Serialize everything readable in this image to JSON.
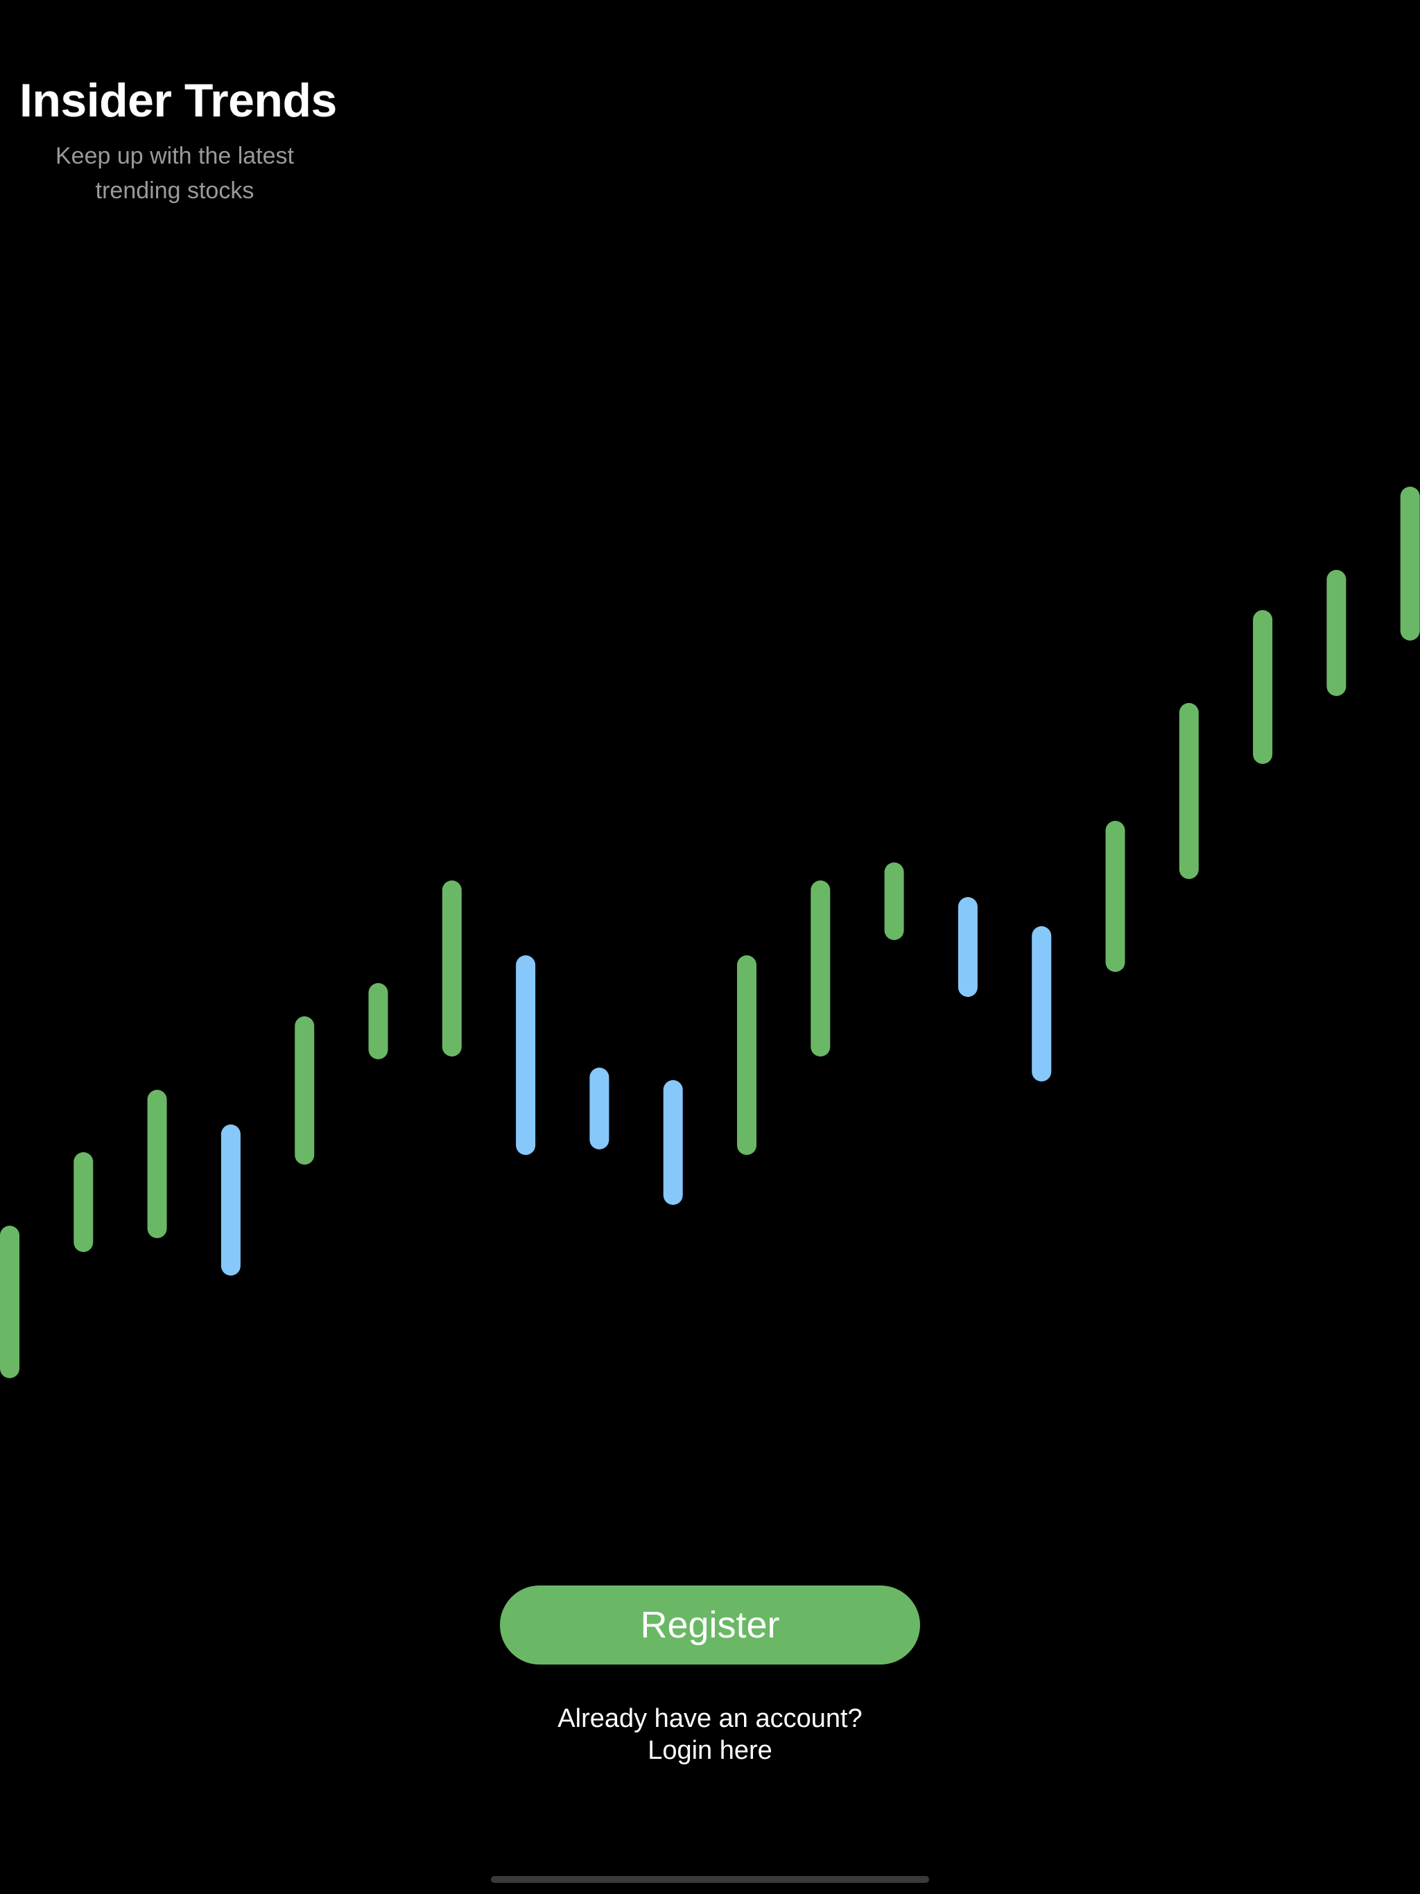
{
  "header": {
    "title": "Insider Trends",
    "subtitle": "Keep up with the latest trending stocks"
  },
  "actions": {
    "register_label": "Register",
    "login_prompt": "Already have an account?",
    "login_label": "Login here"
  },
  "colors": {
    "background": "#000000",
    "up": "#6ab865",
    "down": "#87c8fa",
    "home_indicator": "#3a3a3c"
  },
  "chart_data": {
    "type": "bar",
    "decorative": true,
    "bars": [
      {
        "low": 0.0,
        "high": 11.0,
        "direction": "up"
      },
      {
        "low": 9.1,
        "high": 16.3,
        "direction": "up"
      },
      {
        "low": 10.1,
        "high": 20.8,
        "direction": "up"
      },
      {
        "low": 7.4,
        "high": 18.3,
        "direction": "down"
      },
      {
        "low": 15.4,
        "high": 26.1,
        "direction": "up"
      },
      {
        "low": 23.0,
        "high": 28.5,
        "direction": "up"
      },
      {
        "low": 23.2,
        "high": 35.9,
        "direction": "up"
      },
      {
        "low": 16.1,
        "high": 30.5,
        "direction": "down"
      },
      {
        "low": 16.5,
        "high": 22.4,
        "direction": "down"
      },
      {
        "low": 12.5,
        "high": 21.5,
        "direction": "down"
      },
      {
        "low": 16.1,
        "high": 30.5,
        "direction": "up"
      },
      {
        "low": 23.2,
        "high": 35.9,
        "direction": "up"
      },
      {
        "low": 31.6,
        "high": 37.2,
        "direction": "up"
      },
      {
        "low": 27.5,
        "high": 34.7,
        "direction": "down"
      },
      {
        "low": 21.4,
        "high": 32.6,
        "direction": "down"
      },
      {
        "low": 29.3,
        "high": 40.2,
        "direction": "up"
      },
      {
        "low": 36.0,
        "high": 48.7,
        "direction": "up"
      },
      {
        "low": 44.3,
        "high": 55.4,
        "direction": "up"
      },
      {
        "low": 49.2,
        "high": 58.3,
        "direction": "up"
      },
      {
        "low": 53.2,
        "high": 64.3,
        "direction": "up"
      }
    ]
  }
}
